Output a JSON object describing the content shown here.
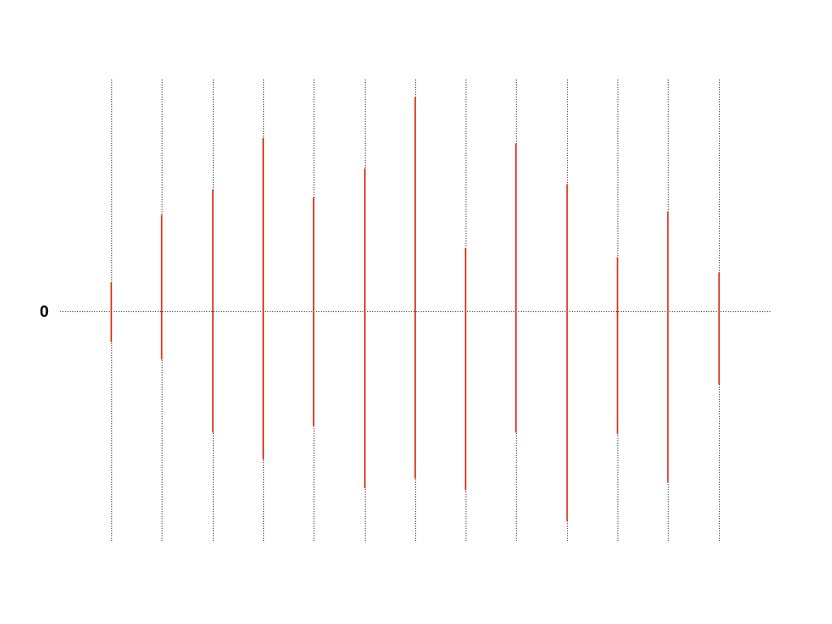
{
  "chart_data": {
    "type": "bar",
    "subtype": "floating-range",
    "title": "",
    "xlabel": "",
    "ylabel": "",
    "y_tick_labels": [
      "0"
    ],
    "ylim": [
      -1.2,
      1.2
    ],
    "x_axis_visible": false,
    "grid": {
      "vertical": true,
      "style": "dotted",
      "horizontal_zero_line": true
    },
    "bar_color": "#e0442e",
    "series": [
      {
        "low": [
          -0.16,
          -0.25,
          -0.63,
          -0.77,
          -0.6,
          -0.92,
          -0.87,
          -0.93,
          -0.63,
          -1.09,
          -0.64,
          -0.89,
          -0.38
        ],
        "high": [
          0.15,
          0.5,
          0.63,
          0.9,
          0.59,
          0.74,
          1.11,
          0.33,
          0.87,
          0.66,
          0.28,
          0.52,
          0.2
        ]
      }
    ]
  }
}
